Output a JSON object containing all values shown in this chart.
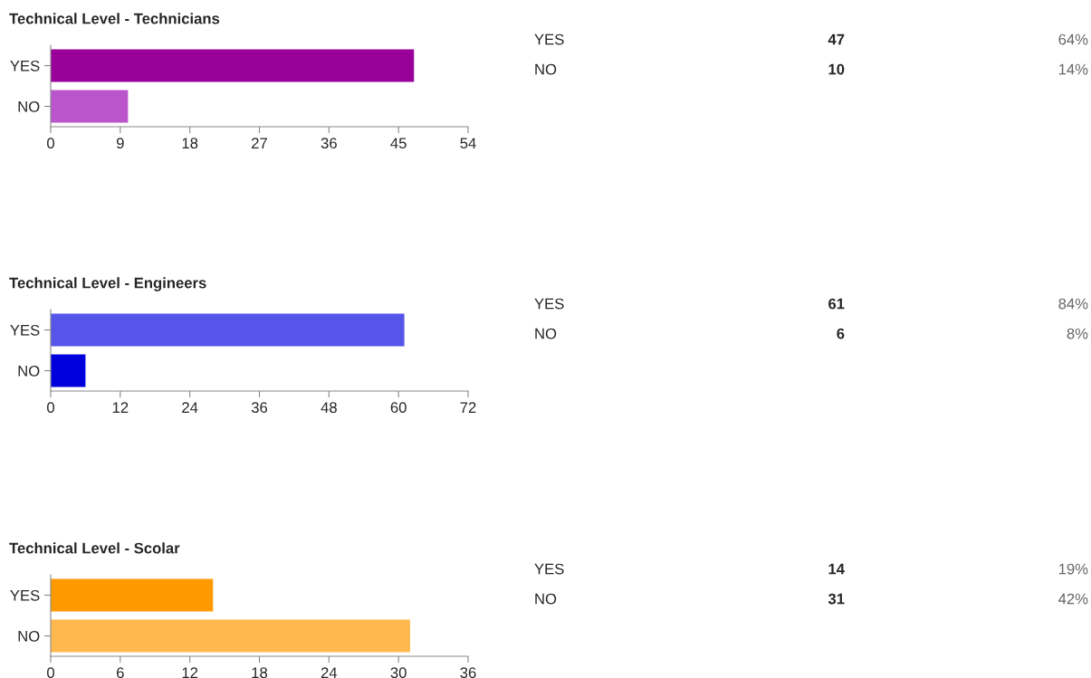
{
  "chart_data": [
    {
      "type": "bar",
      "orientation": "horizontal",
      "title": "Technical Level - Technicians",
      "categories": [
        "YES",
        "NO"
      ],
      "values": [
        47,
        10
      ],
      "colors": [
        "#990099",
        "#bb55cc"
      ],
      "xlim": [
        0,
        54
      ],
      "xticks": [
        0,
        9,
        18,
        27,
        36,
        45,
        54
      ],
      "annotations": [
        "47",
        "64%",
        "10",
        "14%"
      ],
      "grid": false,
      "legend": false
    },
    {
      "type": "bar",
      "orientation": "horizontal",
      "title": "Technical Level - Engineers",
      "categories": [
        "YES",
        "NO"
      ],
      "values": [
        61,
        6
      ],
      "colors": [
        "#5555ea",
        "#0000dd"
      ],
      "xlim": [
        0,
        72
      ],
      "xticks": [
        0,
        12,
        24,
        36,
        48,
        60,
        72
      ],
      "annotations": [
        "61",
        "84%",
        "6",
        "8%"
      ],
      "grid": false,
      "legend": false
    },
    {
      "type": "bar",
      "orientation": "horizontal",
      "title": "Technical Level - Scolar",
      "categories": [
        "YES",
        "NO"
      ],
      "values": [
        14,
        31
      ],
      "colors": [
        "#ff9900",
        "#ffb84d"
      ],
      "xlim": [
        0,
        36
      ],
      "xticks": [
        0,
        6,
        12,
        18,
        24,
        30,
        36
      ],
      "annotations": [
        "14",
        "19%",
        "31",
        "42%"
      ],
      "grid": false,
      "legend": false
    }
  ]
}
